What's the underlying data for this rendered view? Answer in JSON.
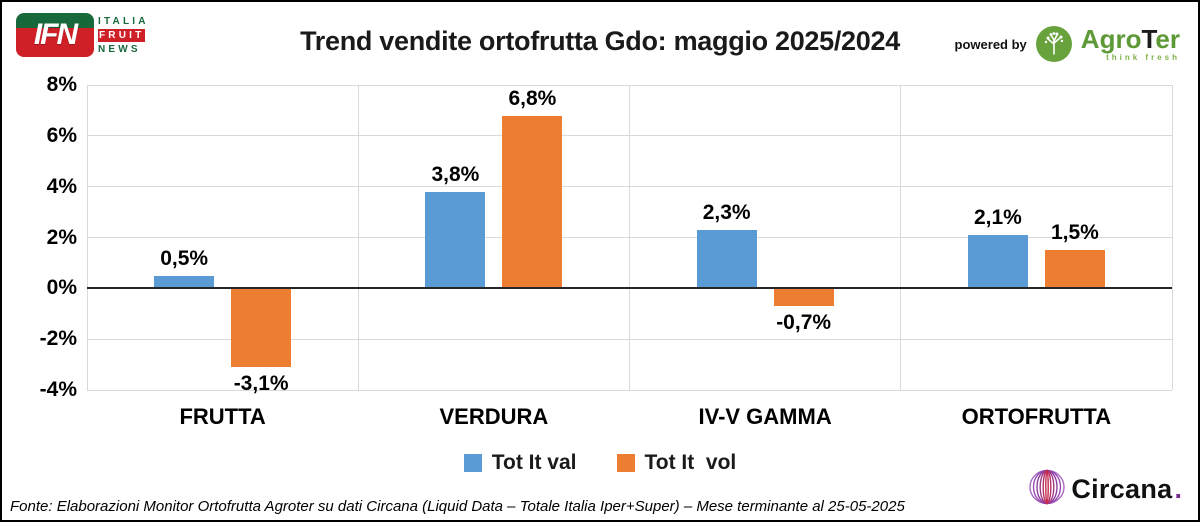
{
  "header": {
    "title": "Trend vendite ortofrutta Gdo: maggio 2025/2024",
    "ifn_logo": {
      "acronym": "IFN",
      "line1": "ITALIA",
      "line2": "FRUIT",
      "line3": "NEWS"
    },
    "powered_by_label": "powered by",
    "agroter_logo": {
      "part_agro": "Agro",
      "part_t": "T",
      "part_er": "er",
      "tagline": "think fresh",
      "tree_icon": "tree-icon",
      "green": "#67A23C"
    }
  },
  "chart_data": {
    "type": "bar",
    "title": "Trend vendite ortofrutta Gdo: maggio 2025/2024",
    "categories": [
      "FRUTTA",
      "VERDURA",
      "IV-V GAMMA",
      "ORTOFRUTTA"
    ],
    "series": [
      {
        "name": "Tot It val",
        "color": "#5B9BD5",
        "values": [
          0.5,
          3.8,
          2.3,
          2.1
        ],
        "labels": [
          "0,5%",
          "3,8%",
          "2,3%",
          "2,1%"
        ]
      },
      {
        "name": "Tot It  vol",
        "color": "#ED7D31",
        "values": [
          -3.1,
          6.8,
          -0.7,
          1.5
        ],
        "labels": [
          "-3,1%",
          "6,8%",
          "-0,7%",
          "1,5%"
        ]
      }
    ],
    "ylim": [
      -4,
      8
    ],
    "ytick_step": 2,
    "ytick_labels": [
      "8%",
      "6%",
      "4%",
      "2%",
      "0%",
      "-2%",
      "-4%"
    ],
    "grid": true,
    "gridline_color": "#D9D9D9",
    "zero_line_color": "#262626",
    "legend_position": "bottom"
  },
  "footer": {
    "source": "Fonte: Elaborazioni Monitor Ortofrutta Agroter su dati Circana (Liquid Data – Totale Italia Iper+Super) – Mese terminante al 25-05-2025",
    "circana_name": "Circana",
    "circana_dot": ".",
    "circana_purple": "#7B2D8E"
  }
}
